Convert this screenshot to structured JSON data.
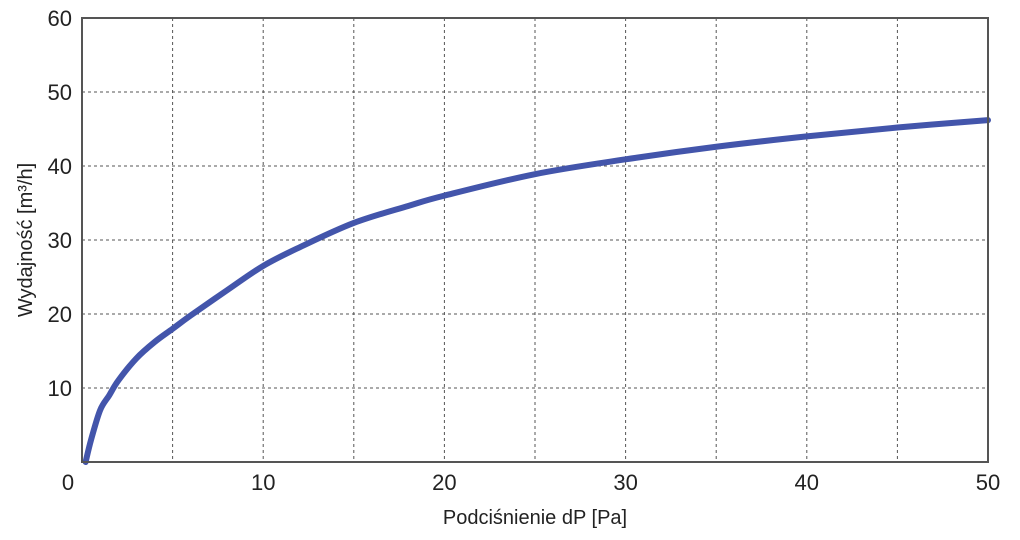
{
  "chart_data": {
    "type": "line",
    "xlabel": "Podciśnienie dP [Pa]",
    "ylabel": "Wydajność [m³/h]",
    "xlim": [
      0,
      50
    ],
    "ylim": [
      0,
      60
    ],
    "xticks": [
      0,
      10,
      20,
      30,
      40,
      50
    ],
    "yticks": [
      10,
      20,
      30,
      40,
      50,
      60
    ],
    "grid": true,
    "colors": {
      "series": "#4355ab",
      "frame": "#555555"
    },
    "series": [
      {
        "x": [
          0.2,
          0.5,
          1,
          1.5,
          2,
          3,
          4,
          5,
          6,
          8,
          10,
          12,
          15,
          18,
          20,
          25,
          30,
          35,
          40,
          45,
          50
        ],
        "values": [
          0,
          3,
          7,
          9,
          11,
          14,
          16.2,
          18,
          19.8,
          23.2,
          26.5,
          29,
          32.3,
          34.6,
          36,
          38.9,
          40.9,
          42.6,
          44,
          45.2,
          46.2
        ]
      }
    ]
  }
}
